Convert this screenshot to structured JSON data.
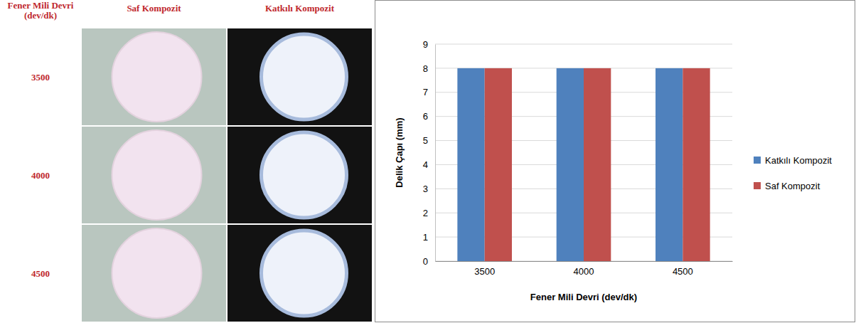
{
  "chart_data": {
    "type": "bar",
    "categories": [
      "3500",
      "4000",
      "4500"
    ],
    "series": [
      {
        "name": "Katkılı Kompozit",
        "color": "#4f81bd",
        "values": [
          8,
          8,
          8
        ]
      },
      {
        "name": "Saf Kompozit",
        "color": "#c0504d",
        "values": [
          8,
          8,
          8
        ]
      }
    ],
    "x_label": "Fener Mili Devri (dev/dk)",
    "y_label": "Delik Çapı (mm)",
    "ylim": [
      0,
      9
    ],
    "yticks": [
      0,
      1,
      2,
      3,
      4,
      5,
      6,
      7,
      8,
      9
    ],
    "grid": true,
    "legend": "right"
  },
  "photo_panel": {
    "row_header": "Fener Mili Devri (dev/dk)",
    "columns": [
      "Saf Kompozit",
      "Katkılı Kompozit"
    ],
    "rows": [
      "3500",
      "4000",
      "4500"
    ]
  }
}
